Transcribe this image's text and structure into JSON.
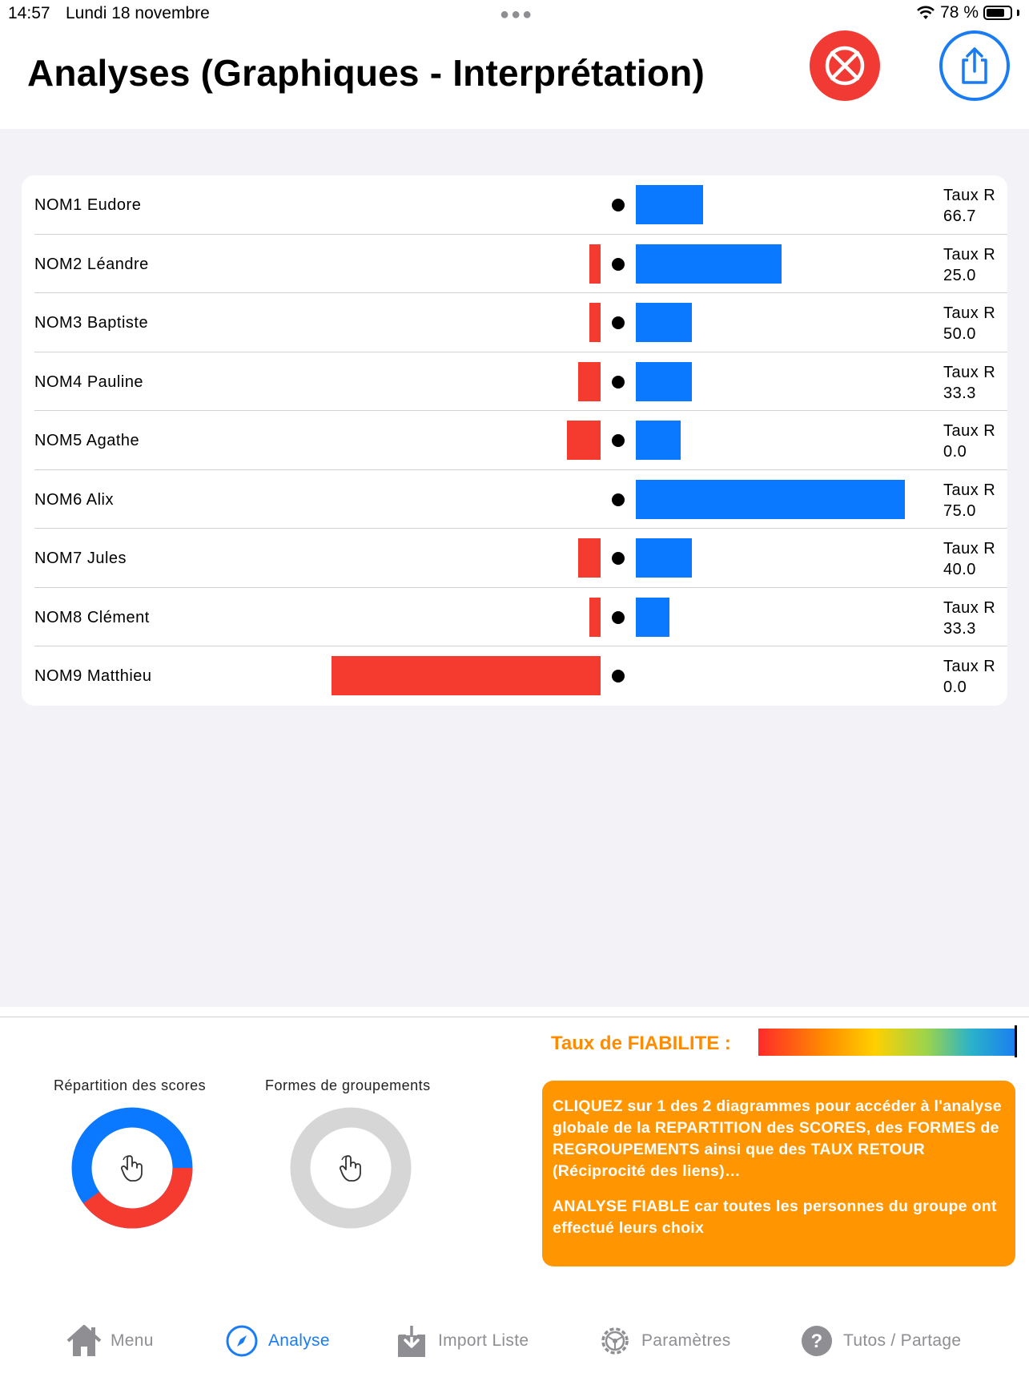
{
  "status": {
    "time": "14:57",
    "date": "Lundi 18 novembre",
    "battery": "78 %",
    "battery_level": 0.78
  },
  "header": {
    "title": "Analyses (Graphiques - Interprétation)"
  },
  "chart_data": {
    "type": "bar",
    "categories": [
      "NOM1 Eudore",
      "NOM2 Léandre",
      "NOM3 Baptiste",
      "NOM4 Pauline",
      "NOM5 Agathe",
      "NOM6 Alix",
      "NOM7 Jules",
      "NOM8 Clément",
      "NOM9 Matthieu"
    ],
    "series": [
      {
        "color": "#f53b30",
        "values": [
          0,
          1,
          1,
          2,
          3,
          0,
          2,
          1,
          24
        ]
      },
      {
        "color": "#0a78ff",
        "values": [
          6,
          13,
          5,
          5,
          4,
          24,
          5,
          3,
          0
        ]
      }
    ],
    "taux_label": "Taux R",
    "taux_values": [
      "66.7",
      "25.0",
      "50.0",
      "33.3",
      "0.0",
      "75.0",
      "40.0",
      "33.3",
      "0.0"
    ]
  },
  "fiabilite": {
    "label": "Taux de FIABILITE :",
    "level": 1.0
  },
  "donuts": {
    "scores_title": "Répartition des scores",
    "scores_share_red": 0.4,
    "groupements_title": "Formes de groupements"
  },
  "info": {
    "p1": "CLIQUEZ sur 1 des 2 diagrammes pour accéder à l'analyse globale de la REPARTITION des SCORES, des FORMES de REGROUPEMENTS ainsi que des TAUX RETOUR (Réciprocité des liens)…",
    "p2": "ANALYSE FIABLE car toutes les personnes du groupe ont effectué leurs choix"
  },
  "tabs": [
    {
      "label": "Menu",
      "icon": "house-icon"
    },
    {
      "label": "Analyse",
      "icon": "compass-icon",
      "active": true
    },
    {
      "label": "Import Liste",
      "icon": "download-tray-icon"
    },
    {
      "label": "Paramètres",
      "icon": "gear-icon"
    },
    {
      "label": "Tutos / Partage",
      "icon": "question-icon"
    }
  ],
  "colors": {
    "accent": "#1a7cf2",
    "red": "#f53b30",
    "blue": "#0a78ff",
    "orange": "#ff9500"
  }
}
